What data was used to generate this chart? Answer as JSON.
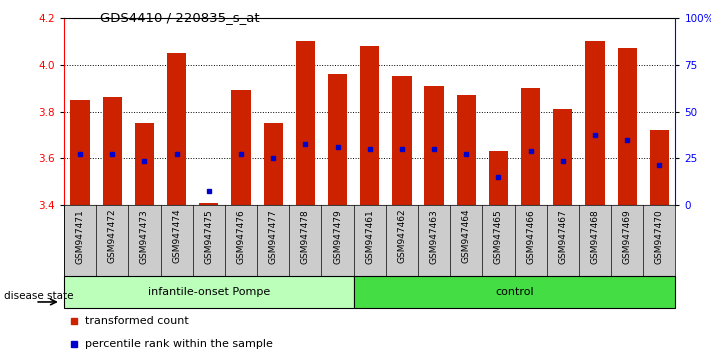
{
  "title": "GDS4410 / 220835_s_at",
  "samples": [
    "GSM947471",
    "GSM947472",
    "GSM947473",
    "GSM947474",
    "GSM947475",
    "GSM947476",
    "GSM947477",
    "GSM947478",
    "GSM947479",
    "GSM947461",
    "GSM947462",
    "GSM947463",
    "GSM947464",
    "GSM947465",
    "GSM947466",
    "GSM947467",
    "GSM947468",
    "GSM947469",
    "GSM947470"
  ],
  "bar_values": [
    3.85,
    3.86,
    3.75,
    4.05,
    3.41,
    3.89,
    3.75,
    4.1,
    3.96,
    4.08,
    3.95,
    3.91,
    3.87,
    3.63,
    3.9,
    3.81,
    4.1,
    4.07,
    3.72
  ],
  "percentile_values": [
    3.62,
    3.62,
    3.59,
    3.62,
    3.46,
    3.62,
    3.6,
    3.66,
    3.65,
    3.64,
    3.64,
    3.64,
    3.62,
    3.52,
    3.63,
    3.59,
    3.7,
    3.68,
    3.57
  ],
  "bar_bottom": 3.4,
  "ylim_left": [
    3.4,
    4.2
  ],
  "ylim_right": [
    0,
    100
  ],
  "yticks_left": [
    3.4,
    3.6,
    3.8,
    4.0,
    4.2
  ],
  "yticks_right": [
    0,
    25,
    50,
    75,
    100
  ],
  "ytick_labels_right": [
    "0",
    "25",
    "50",
    "75",
    "100%"
  ],
  "bar_color": "#cc2200",
  "percentile_color": "#0000cc",
  "group1_label": "infantile-onset Pompe",
  "group2_label": "control",
  "group1_count": 9,
  "group2_count": 10,
  "group1_color": "#bbffbb",
  "group2_color": "#44dd44",
  "disease_state_label": "disease state",
  "legend1": "transformed count",
  "legend2": "percentile rank within the sample",
  "background_color": "#ffffff",
  "tick_bg_color": "#cccccc"
}
